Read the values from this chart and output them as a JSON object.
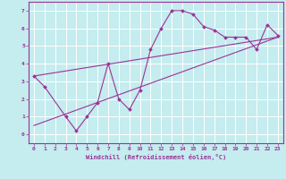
{
  "xlabel": "Windchill (Refroidissement éolien,°C)",
  "background_color": "#c5ecee",
  "grid_color": "#ffffff",
  "line_color": "#993399",
  "scatter_x": [
    0,
    1,
    3,
    4,
    5,
    6,
    7,
    8,
    9,
    10,
    11,
    12,
    13,
    14,
    15,
    16,
    17,
    18,
    19,
    20,
    21,
    22,
    23
  ],
  "scatter_y": [
    3.3,
    2.7,
    1.0,
    0.2,
    1.0,
    1.8,
    4.0,
    2.0,
    1.4,
    2.5,
    4.8,
    6.0,
    7.0,
    7.0,
    6.8,
    6.1,
    5.9,
    5.5,
    5.5,
    5.5,
    4.8,
    6.2,
    5.6
  ],
  "trend1_x": [
    0,
    23
  ],
  "trend1_y": [
    3.3,
    5.5
  ],
  "trend2_x": [
    0,
    23
  ],
  "trend2_y": [
    0.5,
    5.5
  ],
  "xlim": [
    -0.5,
    23.5
  ],
  "ylim": [
    -0.5,
    7.5
  ],
  "yticks": [
    0,
    1,
    2,
    3,
    4,
    5,
    6,
    7
  ],
  "xticks": [
    0,
    1,
    2,
    3,
    4,
    5,
    6,
    7,
    8,
    9,
    10,
    11,
    12,
    13,
    14,
    15,
    16,
    17,
    18,
    19,
    20,
    21,
    22,
    23
  ]
}
